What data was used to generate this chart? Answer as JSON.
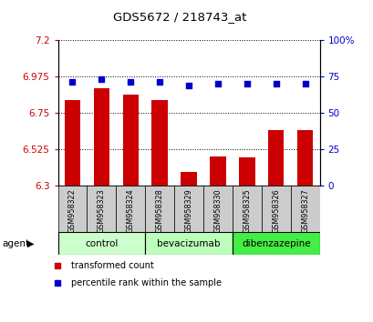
{
  "title": "GDS5672 / 218743_at",
  "samples": [
    "GSM958322",
    "GSM958323",
    "GSM958324",
    "GSM958328",
    "GSM958329",
    "GSM958330",
    "GSM958325",
    "GSM958326",
    "GSM958327"
  ],
  "bar_values": [
    6.83,
    6.9,
    6.86,
    6.83,
    6.38,
    6.48,
    6.47,
    6.64,
    6.64
  ],
  "percentile_values": [
    71,
    73,
    71,
    71,
    69,
    70,
    70,
    70,
    70
  ],
  "ymin": 6.3,
  "ymax": 7.2,
  "yticks": [
    6.3,
    6.525,
    6.75,
    6.975,
    7.2
  ],
  "ytick_labels": [
    "6.3",
    "6.525",
    "6.75",
    "6.975",
    "7.2"
  ],
  "y2min": 0,
  "y2max": 100,
  "y2ticks": [
    0,
    25,
    50,
    75,
    100
  ],
  "y2tick_labels": [
    "0",
    "25",
    "50",
    "75",
    "100%"
  ],
  "bar_color": "#cc0000",
  "dot_color": "#0000cc",
  "groups": [
    {
      "label": "control",
      "start": 0,
      "end": 3,
      "color": "#ccffcc"
    },
    {
      "label": "bevacizumab",
      "start": 3,
      "end": 6,
      "color": "#bbffbb"
    },
    {
      "label": "dibenzazepine",
      "start": 6,
      "end": 9,
      "color": "#44ee44"
    }
  ],
  "sample_box_bg": "#cccccc",
  "legend_items": [
    {
      "label": "transformed count",
      "color": "#cc0000"
    },
    {
      "label": "percentile rank within the sample",
      "color": "#0000cc"
    }
  ],
  "agent_label": "agent",
  "bar_color_left": "#cc0000",
  "y2label_color": "#0000cc"
}
